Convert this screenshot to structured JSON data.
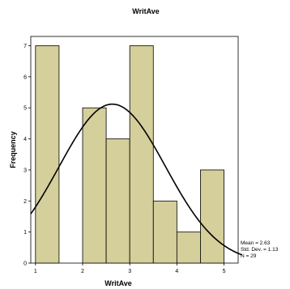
{
  "chart_data": {
    "type": "histogram",
    "title": "WritAve",
    "xlabel": "WritAve",
    "ylabel": "Frequency",
    "xlim": [
      0.9,
      5.3
    ],
    "ylim": [
      0,
      7.3
    ],
    "xticks": [
      "1",
      "2",
      "3",
      "4",
      "5"
    ],
    "yticks": [
      "0",
      "1",
      "2",
      "3",
      "4",
      "5",
      "6",
      "7"
    ],
    "bins": [
      {
        "start": 1.0,
        "end": 1.5,
        "count": 7
      },
      {
        "start": 1.5,
        "end": 2.0,
        "count": 0
      },
      {
        "start": 2.0,
        "end": 2.5,
        "count": 5
      },
      {
        "start": 2.5,
        "end": 3.0,
        "count": 4
      },
      {
        "start": 3.0,
        "end": 3.5,
        "count": 7
      },
      {
        "start": 3.5,
        "end": 4.0,
        "count": 2
      },
      {
        "start": 4.0,
        "end": 4.5,
        "count": 1
      },
      {
        "start": 4.5,
        "end": 5.0,
        "count": 3
      }
    ],
    "normal_curve": {
      "mean": 2.63,
      "sd": 1.13,
      "n": 29,
      "bin_width": 0.5
    },
    "stats_text": [
      "Mean = 2.63",
      "Std. Dev. = 1.13",
      "N = 29"
    ],
    "bar_color": "#d4cf9b",
    "bar_edge_color": "#000000",
    "curve_color": "#000000"
  }
}
